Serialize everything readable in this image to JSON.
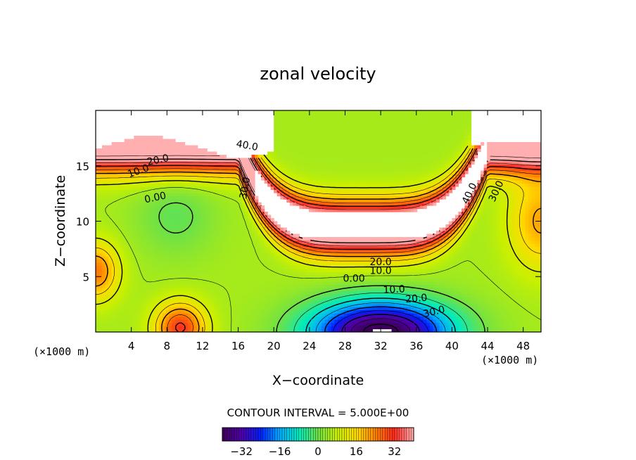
{
  "chart_data": {
    "type": "heatmap",
    "title": "zonal velocity",
    "xlabel": "X−coordinate",
    "ylabel": "Z−coordinate",
    "x_unit": "(×1000 m)",
    "y_unit": "(×1000 m)",
    "xlim": [
      0,
      50
    ],
    "ylim": [
      0,
      20
    ],
    "x_ticks": [
      4,
      8,
      12,
      16,
      20,
      24,
      28,
      32,
      36,
      40,
      44,
      48
    ],
    "y_ticks": [
      5,
      10,
      15
    ],
    "contour_interval_text": "CONTOUR INTERVAL = 5.000E+00",
    "contour_interval": 5,
    "colorbar": {
      "min": -40,
      "max": 40,
      "ticks": [
        -32,
        -16,
        0,
        16,
        32
      ],
      "tick_labels": [
        "−32",
        "−16",
        "0",
        "16",
        "32"
      ]
    },
    "contour_labels": [
      {
        "text": "40.0",
        "x": 17.0,
        "z": 16.8,
        "rot": 10
      },
      {
        "text": "20.0",
        "x": 7.0,
        "z": 15.5,
        "rot": -12
      },
      {
        "text": "10.0",
        "x": 4.8,
        "z": 14.5,
        "rot": -20
      },
      {
        "text": "0.00",
        "x": 6.7,
        "z": 12.1,
        "rot": -12
      },
      {
        "text": "30.0",
        "x": 16.8,
        "z": 13.0,
        "rot": -80
      },
      {
        "text": "40.0",
        "x": 42.0,
        "z": 12.5,
        "rot": -65
      },
      {
        "text": "30.0",
        "x": 45.0,
        "z": 12.7,
        "rot": -65
      },
      {
        "text": "20.0",
        "x": 32.0,
        "z": 6.3,
        "rot": 0
      },
      {
        "text": "10.0",
        "x": 32.0,
        "z": 5.5,
        "rot": 0
      },
      {
        "text": "0.00",
        "x": 29.0,
        "z": 4.8,
        "rot": 0
      },
      {
        "text": "10.0",
        "x": 33.5,
        "z": 3.8,
        "rot": -3
      },
      {
        "text": "20.0",
        "x": 36.0,
        "z": 3.0,
        "rot": -5
      },
      {
        "text": "30.0",
        "x": 38.0,
        "z": 1.8,
        "rot": -14
      }
    ]
  }
}
